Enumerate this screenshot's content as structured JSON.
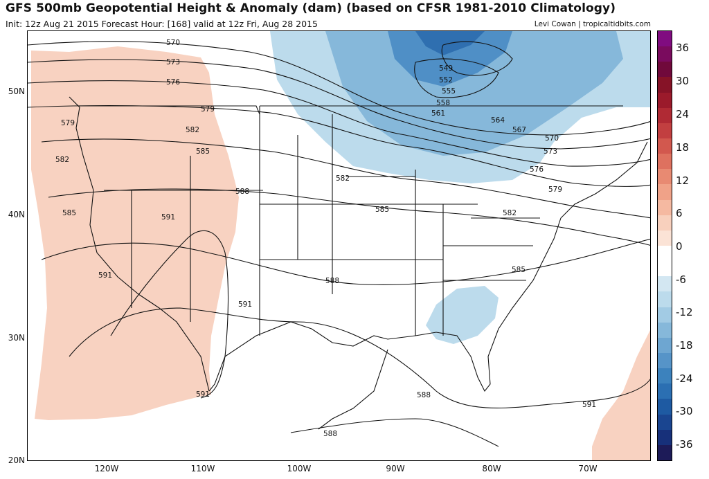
{
  "header": {
    "title": "GFS 500mb Geopotential Height & Anomaly (dam) (based on CFSR 1981-2010 Climatology)",
    "subtitle": "Init: 12z Aug 21 2015   Forecast Hour: [168]   valid at 12z Fri, Aug 28 2015",
    "credit": "Levi Cowan | tropicaltidbits.com"
  },
  "axes": {
    "latitudes": [
      "50N",
      "40N",
      "30N",
      "20N"
    ],
    "longitudes": [
      "120W",
      "110W",
      "100W",
      "90W",
      "80W",
      "70W"
    ]
  },
  "contour_labels": [
    "570",
    "573",
    "576",
    "579",
    "579",
    "582",
    "582",
    "582",
    "585",
    "585",
    "585",
    "588",
    "588",
    "588",
    "588",
    "591",
    "591",
    "591",
    "591",
    "591",
    "549",
    "552",
    "555",
    "558",
    "561",
    "564",
    "567",
    "570",
    "573",
    "576",
    "579",
    "582",
    "585"
  ],
  "colorbar": {
    "ticks": [
      "36",
      "30",
      "24",
      "18",
      "12",
      "6",
      "0",
      "-6",
      "-12",
      "-18",
      "-24",
      "-30",
      "-36"
    ],
    "colors": [
      "#1d1b58",
      "#17307a",
      "#1a4590",
      "#1e5aa2",
      "#2b6fb2",
      "#3c82bd",
      "#5694c8",
      "#6ea6d1",
      "#86b8da",
      "#a2cbe4",
      "#bcdbec",
      "#d3e7f2",
      "#ffffff",
      "#ffffff",
      "#fbe3d6",
      "#f8d0bd",
      "#f5b9a1",
      "#f0a288",
      "#e88a72",
      "#de715f",
      "#d2584e",
      "#c23f40",
      "#b02a34",
      "#9b1a2b",
      "#861327",
      "#70093b",
      "#7a0b5e",
      "#800c80"
    ]
  },
  "colors": {
    "positive_anomaly": "#f8d2c1",
    "negative_light": "#bcdbec",
    "negative_mid": "#86b8da",
    "negative_deep": "#4f8fc6"
  }
}
